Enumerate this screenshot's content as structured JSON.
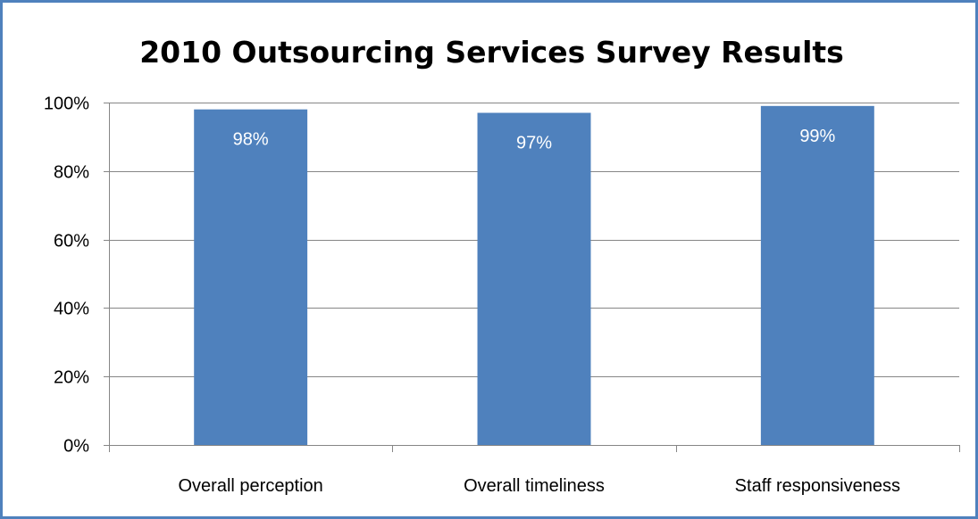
{
  "chart_data": {
    "type": "bar",
    "title": "2010 Outsourcing Services Survey Results",
    "xlabel": "",
    "ylabel": "",
    "categories": [
      "Overall perception",
      "Overall timeliness",
      "Staff responsiveness"
    ],
    "values": [
      0.98,
      0.97,
      0.99
    ],
    "data_labels": [
      "98%",
      "97%",
      "99%"
    ],
    "ylim": [
      0,
      1
    ],
    "y_ticks": [
      0,
      0.2,
      0.4,
      0.6,
      0.8,
      1.0
    ],
    "y_tick_labels": [
      "0%",
      "20%",
      "40%",
      "60%",
      "80%",
      "100%"
    ],
    "grid": true,
    "legend": "none",
    "colors": {
      "bar": "#4f81bd",
      "border": "#4f81bd",
      "grid": "#868686",
      "data_label": "#ffffff"
    }
  }
}
